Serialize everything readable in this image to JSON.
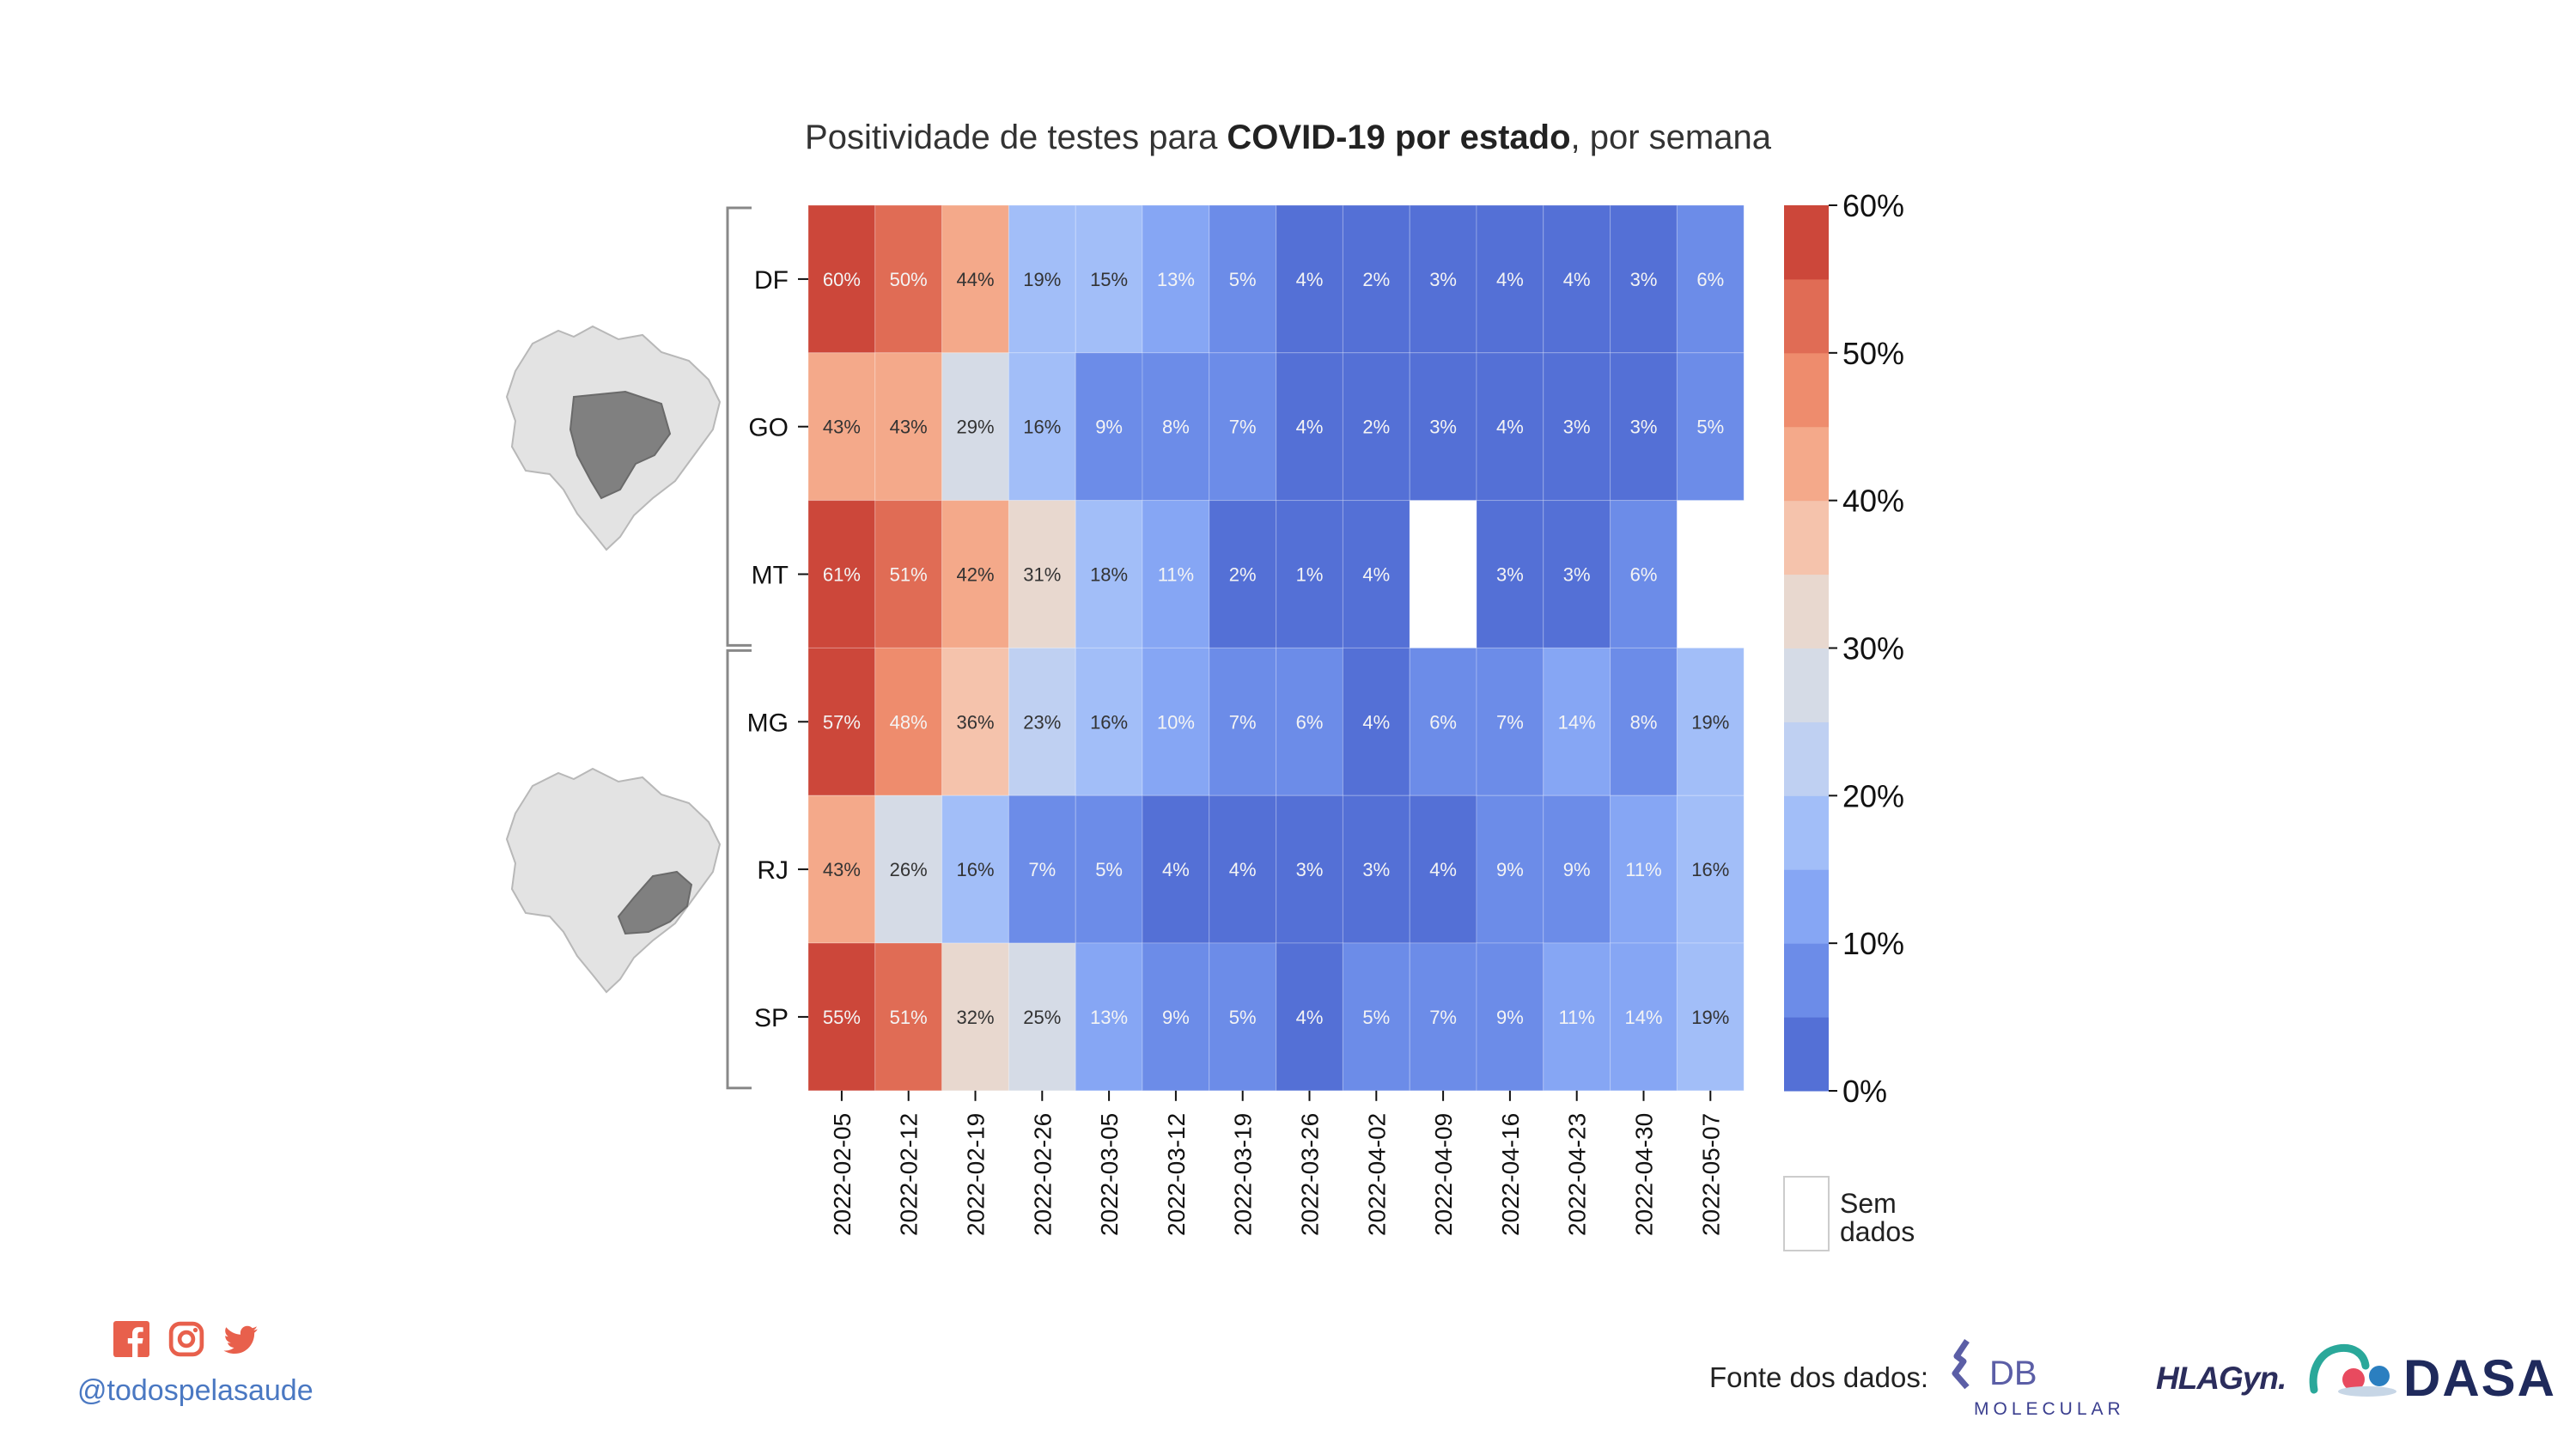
{
  "title": {
    "prefix": "Positividade de testes para ",
    "bold": "COVID-19 por estado",
    "suffix": ", por semana"
  },
  "chart_data": {
    "type": "heatmap",
    "title": "Positividade de testes para COVID-19 por estado, por semana",
    "x": [
      "2022-02-05",
      "2022-02-12",
      "2022-02-19",
      "2022-02-26",
      "2022-03-05",
      "2022-03-12",
      "2022-03-19",
      "2022-03-26",
      "2022-04-02",
      "2022-04-09",
      "2022-04-16",
      "2022-04-23",
      "2022-04-30",
      "2022-05-07"
    ],
    "y": [
      "DF",
      "GO",
      "MT",
      "MG",
      "RJ",
      "SP"
    ],
    "groups": [
      [
        "DF",
        "GO",
        "MT"
      ],
      [
        "MG",
        "RJ",
        "SP"
      ]
    ],
    "values": [
      [
        60,
        50,
        44,
        19,
        15,
        13,
        5,
        4,
        2,
        3,
        4,
        4,
        3,
        6
      ],
      [
        43,
        43,
        29,
        16,
        9,
        8,
        7,
        4,
        2,
        3,
        4,
        3,
        3,
        5
      ],
      [
        61,
        51,
        42,
        31,
        18,
        11,
        2,
        1,
        4,
        null,
        3,
        3,
        6,
        null
      ],
      [
        57,
        48,
        36,
        23,
        16,
        10,
        7,
        6,
        4,
        6,
        7,
        14,
        8,
        19
      ],
      [
        43,
        26,
        16,
        7,
        5,
        4,
        4,
        3,
        3,
        4,
        9,
        9,
        11,
        16
      ],
      [
        55,
        51,
        32,
        25,
        13,
        9,
        5,
        4,
        5,
        7,
        9,
        11,
        14,
        19
      ]
    ],
    "labels": [
      [
        "60%",
        "50%",
        "44%",
        "19%",
        "15%",
        "13%",
        "5%",
        "4%",
        "2%",
        "3%",
        "4%",
        "4%",
        "3%",
        "6%"
      ],
      [
        "43%",
        "43%",
        "29%",
        "16%",
        "9%",
        "8%",
        "7%",
        "4%",
        "2%",
        "3%",
        "4%",
        "3%",
        "3%",
        "5%"
      ],
      [
        "61%",
        "51%",
        "42%",
        "31%",
        "18%",
        "11%",
        "2%",
        "1%",
        "4%",
        "",
        "3%",
        "3%",
        "6%",
        ""
      ],
      [
        "57%",
        "48%",
        "36%",
        "23%",
        "16%",
        "10%",
        "7%",
        "6%",
        "4%",
        "6%",
        "7%",
        "14%",
        "8%",
        "19%"
      ],
      [
        "43%",
        "26%",
        "16%",
        "7%",
        "5%",
        "4%",
        "4%",
        "3%",
        "3%",
        "4%",
        "9%",
        "9%",
        "11%",
        "16%"
      ],
      [
        "55%",
        "51%",
        "32%",
        "25%",
        "13%",
        "9%",
        "5%",
        "4%",
        "5%",
        "7%",
        "9%",
        "11%",
        "14%",
        "19%"
      ]
    ],
    "colorbar": {
      "range": [
        0,
        60
      ],
      "ticks": [
        0,
        10,
        20,
        30,
        40,
        50,
        60
      ],
      "tick_labels": [
        "0%",
        "10%",
        "20%",
        "30%",
        "40%",
        "50%",
        "60%"
      ],
      "bins": [
        "#5470d6",
        "#6c8ce8",
        "#86a6f4",
        "#a2bef8",
        "#bfd0f2",
        "#d5dbe6",
        "#e8d8cf",
        "#f5c3ac",
        "#f4a98a",
        "#ee8c6d",
        "#e06c55",
        "#cc473a"
      ]
    },
    "missing_label": "Sem dados",
    "missing_label_lines": [
      "Sem",
      "dados"
    ],
    "grid": false
  },
  "footer": {
    "handle": "@todospelasaude",
    "source_label": "Fonte dos dados:",
    "social_icons": [
      "facebook-icon",
      "instagram-icon",
      "twitter-icon"
    ],
    "logos": {
      "db_main": "DB",
      "db_sub": "MOLECULAR",
      "hlagyn": "HLAGyn.",
      "dasa": "DASA"
    }
  },
  "colors": {
    "social": "#e8604c",
    "handle": "#4a78c2",
    "map_fill": "#e3e3e3",
    "map_highlight": "#808080",
    "bracket": "#888888"
  }
}
